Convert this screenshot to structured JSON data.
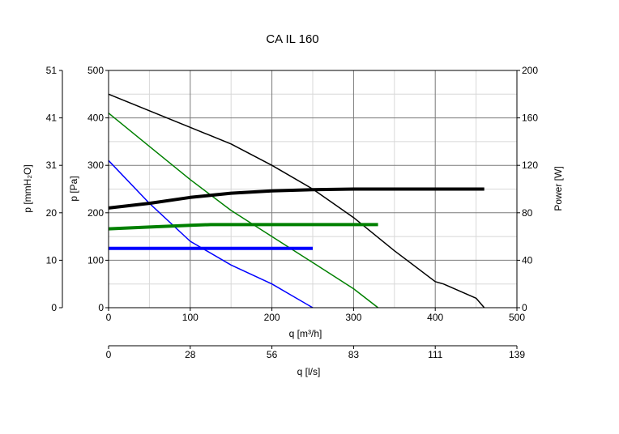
{
  "chart_data": {
    "type": "line",
    "title": "CA IL 160",
    "xlabel": "q [m³/h]",
    "xlabel_secondary": "q [l/s]",
    "ylabel": "p [Pa]",
    "ylabel_secondary": "p [mmH₂O]",
    "ylabel_right": "Power [W]",
    "xlim": [
      0,
      500
    ],
    "ylim": [
      0,
      500
    ],
    "ylim_right": [
      0,
      200
    ],
    "grid": true,
    "x_ticks": [
      "0",
      "100",
      "200",
      "300",
      "400",
      "500"
    ],
    "x_ticks_ls": [
      "0",
      "28",
      "56",
      "83",
      "111",
      "139"
    ],
    "y_ticks": [
      "0",
      "100",
      "200",
      "300",
      "400",
      "500"
    ],
    "y_ticks_mm": [
      "0",
      "10",
      "20",
      "31",
      "41",
      "51"
    ],
    "y_ticks_right": [
      "0",
      "40",
      "80",
      "120",
      "160",
      "200"
    ],
    "series": [
      {
        "axis": "left",
        "color": "#000000",
        "width": 1.5,
        "x": [
          0,
          50,
          100,
          150,
          200,
          250,
          300,
          350,
          400,
          410,
          450,
          460
        ],
        "y": [
          450,
          415,
          380,
          345,
          300,
          250,
          190,
          120,
          55,
          50,
          20,
          0
        ]
      },
      {
        "axis": "left",
        "color": "#008000",
        "width": 1.5,
        "x": [
          0,
          50,
          100,
          150,
          200,
          250,
          300,
          330
        ],
        "y": [
          410,
          340,
          270,
          205,
          150,
          95,
          40,
          0
        ]
      },
      {
        "axis": "left",
        "color": "#0000ff",
        "width": 1.5,
        "x": [
          0,
          50,
          100,
          150,
          200,
          225,
          250
        ],
        "y": [
          310,
          220,
          140,
          90,
          50,
          25,
          0
        ]
      },
      {
        "axis": "right",
        "color": "#000000",
        "width": 4,
        "x": [
          0,
          50,
          100,
          150,
          200,
          250,
          300,
          350,
          400,
          460
        ],
        "y": [
          84,
          88,
          93,
          96.5,
          98.5,
          99.5,
          100,
          100,
          100,
          100
        ]
      },
      {
        "axis": "right",
        "color": "#008000",
        "width": 4,
        "x": [
          0,
          50,
          100,
          125,
          200,
          250,
          300,
          330
        ],
        "y": [
          66.5,
          68,
          69.5,
          70,
          70,
          70,
          70,
          70
        ]
      },
      {
        "axis": "right",
        "color": "#0000ff",
        "width": 4,
        "x": [
          0,
          250
        ],
        "y": [
          50,
          50
        ]
      }
    ]
  }
}
